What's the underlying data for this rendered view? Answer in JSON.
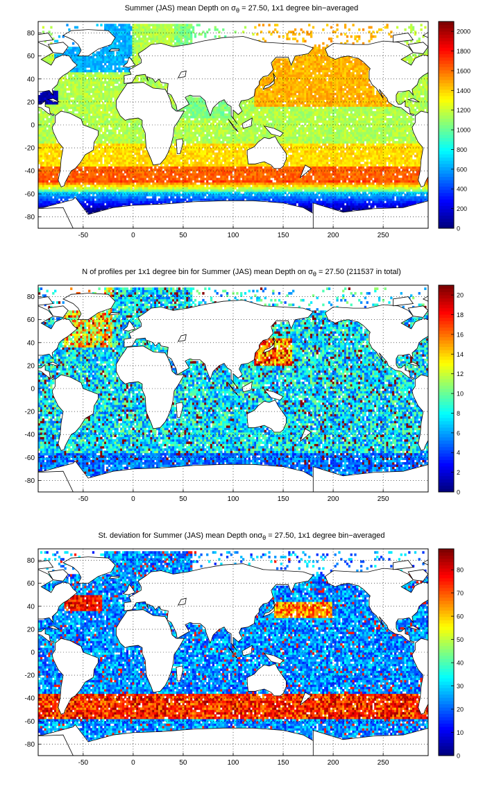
{
  "figure": {
    "panels": [
      {
        "title_pre": "Summer (JAS) mean Depth on σ",
        "title_sub": "θ",
        "title_post": " = 27.50, 1x1 degree bin−averaged",
        "field": "mean_depth",
        "colorbar": {
          "min": 0,
          "max": 2100,
          "ticks": [
            "0",
            "200",
            "400",
            "600",
            "800",
            "1000",
            "1200",
            "1400",
            "1600",
            "1800",
            "2000"
          ]
        }
      },
      {
        "title_pre": "N of profiles per 1x1 degree bin for Summer (JAS) mean Depth on σ",
        "title_sub": "θ",
        "title_post": " = 27.50 (211537 in total)",
        "field": "profile_count",
        "colorbar": {
          "min": 0,
          "max": 21,
          "ticks": [
            "0",
            "2",
            "4",
            "6",
            "8",
            "10",
            "12",
            "14",
            "16",
            "18",
            "20"
          ]
        }
      },
      {
        "title_pre": "St. deviation for Summer (JAS) mean Depth onσ",
        "title_sub": "θ",
        "title_post": " = 27.50, 1x1 degree bin−averaged",
        "field": "std_depth",
        "colorbar": {
          "min": 0,
          "max": 89,
          "ticks": [
            "0",
            "10",
            "20",
            "30",
            "40",
            "50",
            "60",
            "70",
            "80"
          ]
        }
      }
    ],
    "map_axes": {
      "x_ticks": [
        "-50",
        "0",
        "50",
        "100",
        "150",
        "200",
        "250"
      ],
      "y_ticks": [
        "80",
        "60",
        "40",
        "20",
        "0",
        "-20",
        "-40",
        "-60",
        "-80"
      ],
      "xlim": [
        -95,
        295
      ],
      "ylim": [
        -90,
        90
      ],
      "grid": "dotted",
      "colormap": "jet"
    }
  }
}
